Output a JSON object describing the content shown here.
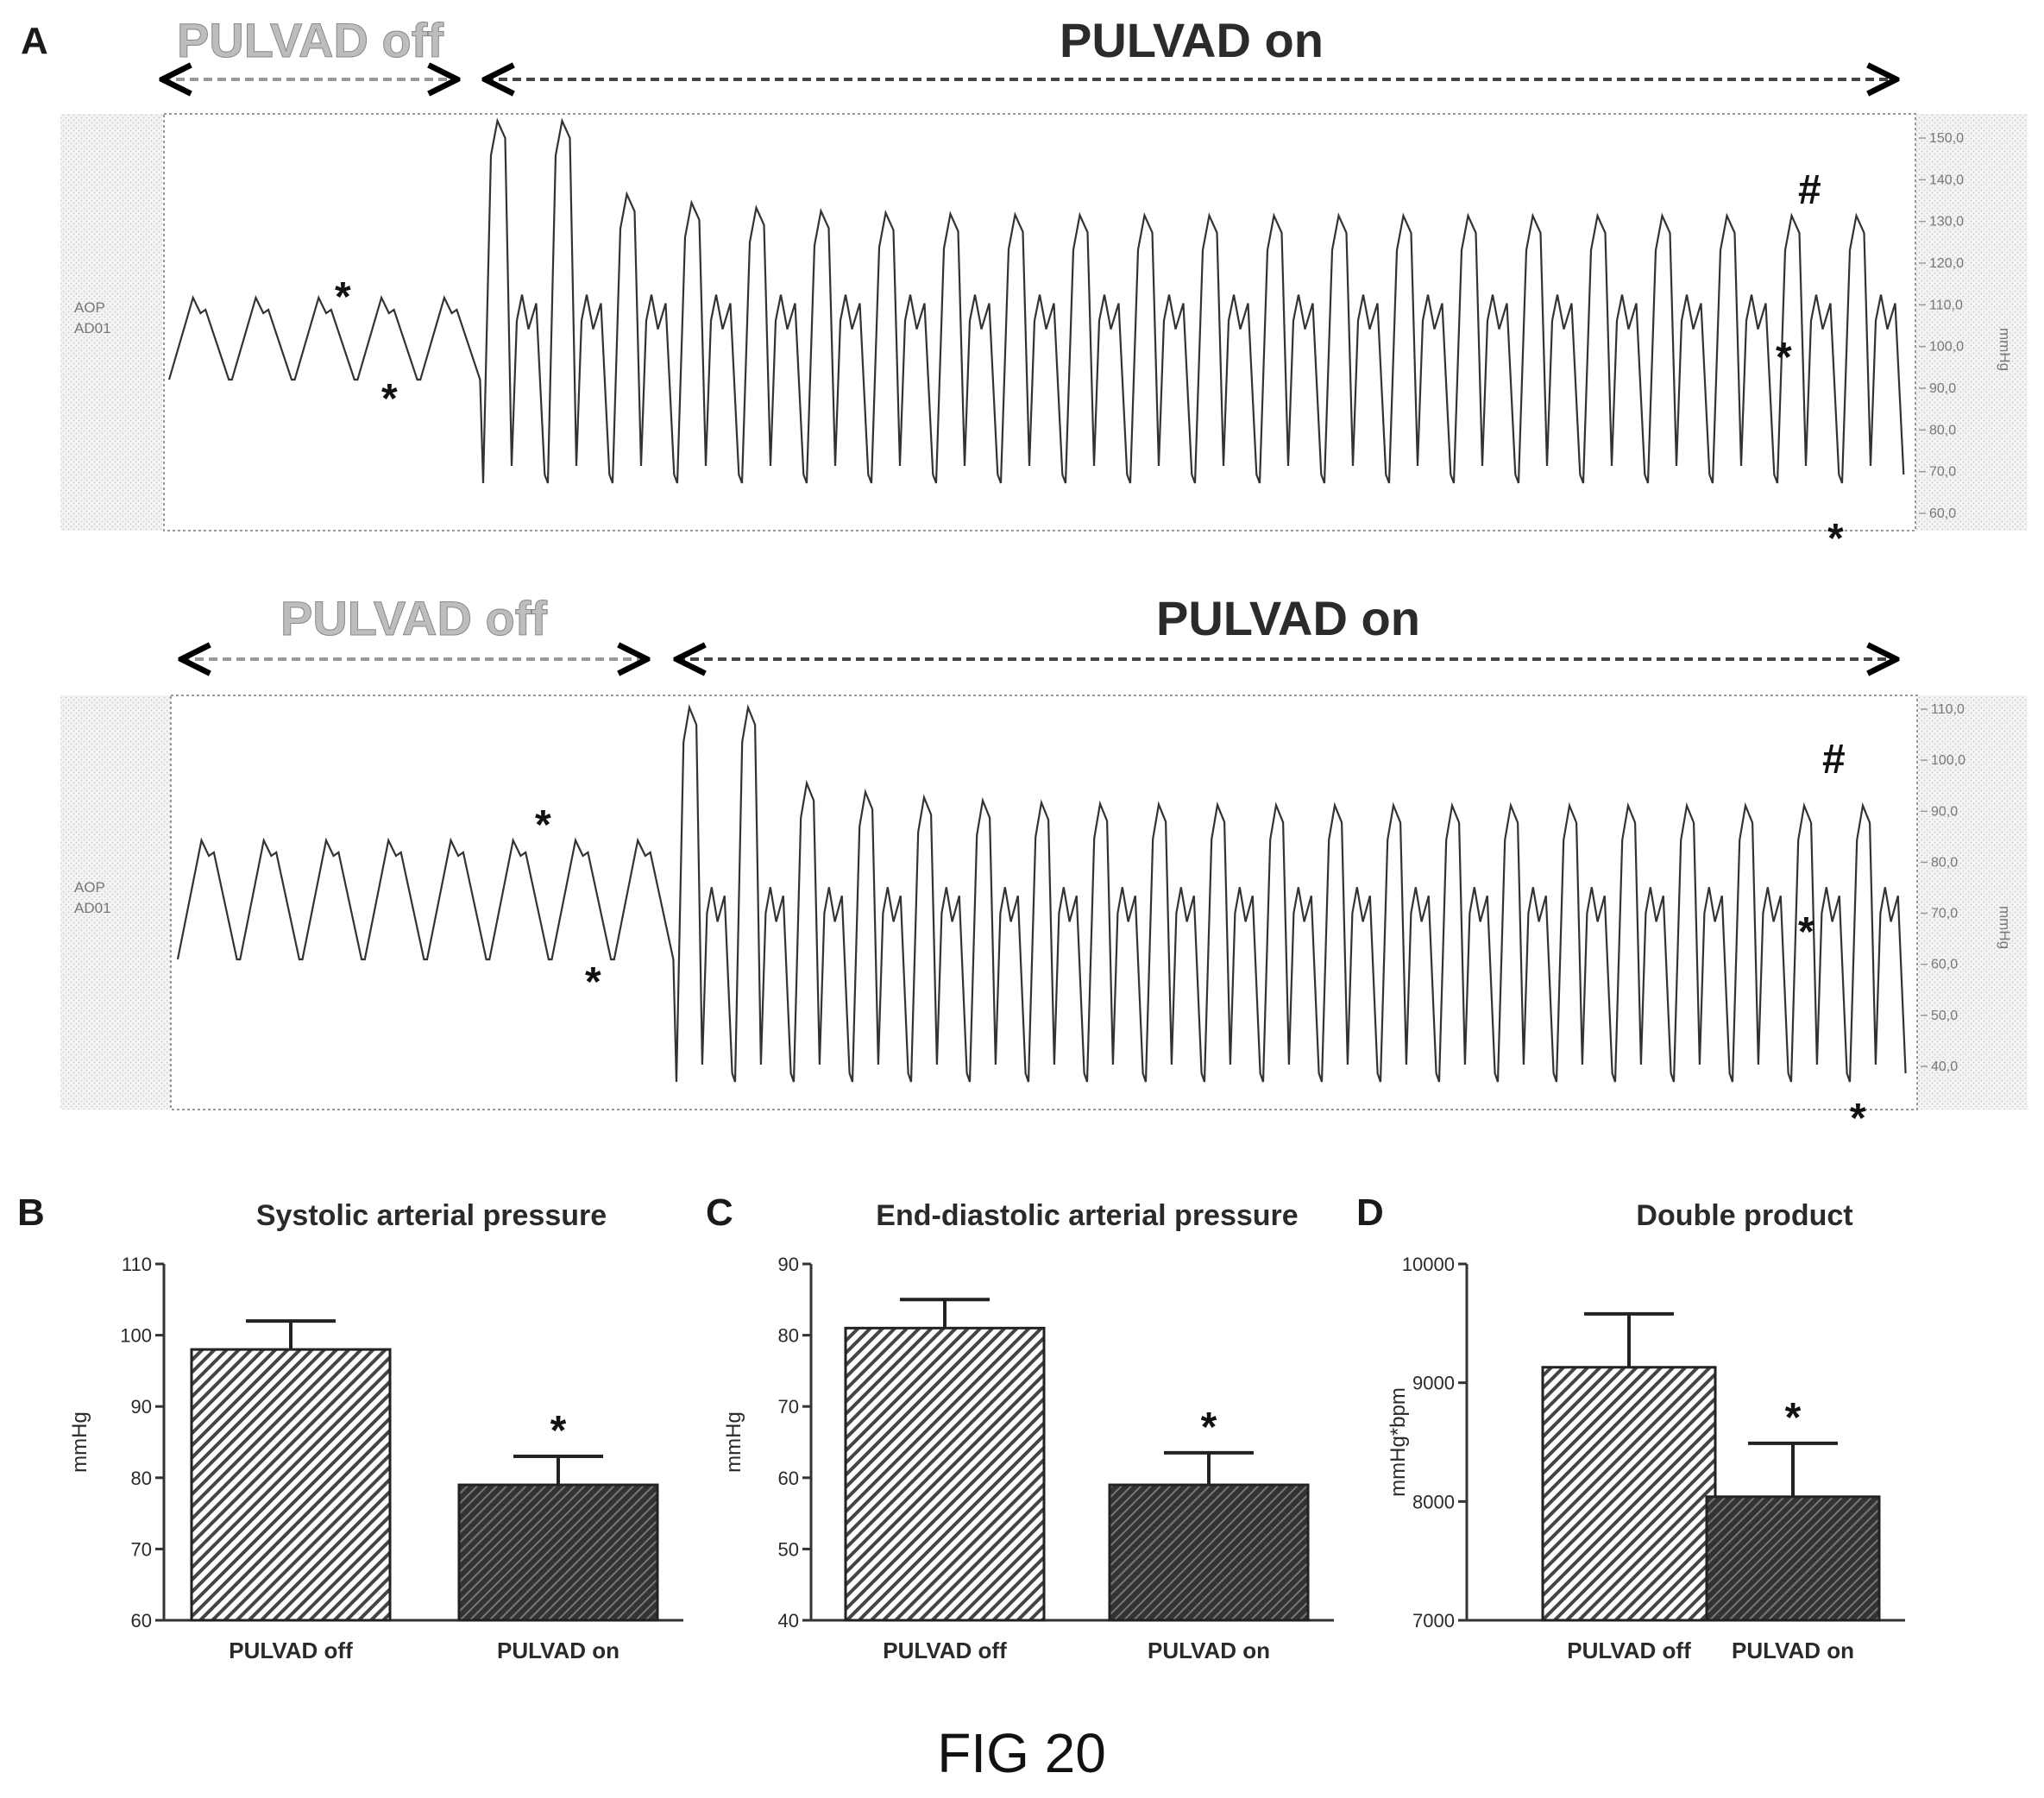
{
  "figure_caption": "FIG 20",
  "panel_a": {
    "letter": "A",
    "traces": [
      {
        "off_label": "PULVAD off",
        "on_label": "PULVAD on",
        "channel_label_1": "AOP",
        "channel_label_2": "AD01",
        "unit_label": "mmHg",
        "y_ticks": [
          "150,0",
          "140,0",
          "130,0",
          "120,0",
          "110,0",
          "100,0",
          "90,0",
          "80,0",
          "70,0",
          "60,0"
        ],
        "marker_systolic": "*",
        "marker_diastolic": "*",
        "marker_hash": "#",
        "off_beats": 5,
        "on_beats": 22,
        "off_range_mmHg": [
          96,
          112
        ],
        "on_range_mmHg": [
          62,
          148
        ]
      },
      {
        "off_label": "PULVAD off",
        "on_label": "PULVAD on",
        "channel_label_1": "AOP",
        "channel_label_2": "AD01",
        "unit_label": "mmHg",
        "y_ticks": [
          "110,0",
          "100,0",
          "90,0",
          "80,0",
          "70,0",
          "60,0",
          "50,0",
          "40,0"
        ],
        "marker_systolic": "*",
        "marker_diastolic": "*",
        "marker_hash": "#",
        "off_beats": 8,
        "on_beats": 21,
        "off_range_mmHg": [
          60,
          82
        ],
        "on_range_mmHg": [
          38,
          100
        ]
      }
    ]
  },
  "chart_data": [
    {
      "type": "bar",
      "letter": "B",
      "title": "Systolic arterial pressure",
      "ylabel": "mmHg",
      "categories": [
        "PULVAD off",
        "PULVAD on"
      ],
      "values": [
        98,
        79
      ],
      "errors": [
        4,
        4
      ],
      "ylim": [
        60,
        110
      ],
      "yticks": [
        60,
        70,
        80,
        90,
        100,
        110
      ],
      "significance": [
        "",
        "*"
      ]
    },
    {
      "type": "bar",
      "letter": "C",
      "title": "End-diastolic arterial pressure",
      "ylabel": "mmHg",
      "categories": [
        "PULVAD off",
        "PULVAD on"
      ],
      "values": [
        81,
        59
      ],
      "errors": [
        4,
        4.5
      ],
      "ylim": [
        40,
        90
      ],
      "yticks": [
        40,
        50,
        60,
        70,
        80,
        90
      ],
      "significance": [
        "",
        "*"
      ]
    },
    {
      "type": "bar",
      "letter": "D",
      "title": "Double product",
      "ylabel": "mmHg*bpm",
      "categories": [
        "PULVAD off",
        "PULVAD on"
      ],
      "values": [
        9130,
        8040
      ],
      "errors": [
        450,
        450
      ],
      "ylim": [
        7000,
        10000
      ],
      "yticks": [
        7000,
        8000,
        9000,
        10000
      ],
      "significance": [
        "",
        "*"
      ]
    }
  ]
}
